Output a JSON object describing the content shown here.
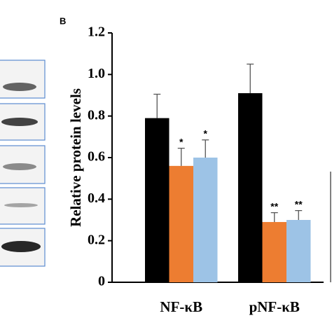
{
  "chart_data": {
    "type": "bar",
    "panel_label": "B",
    "y_label": "Relative protein levels",
    "categories": [
      "NF-κB",
      "pNF-κB"
    ],
    "series": [
      {
        "color": "#000000",
        "values": [
          0.79,
          0.91
        ],
        "errors": [
          0.115,
          0.14
        ]
      },
      {
        "color": "#ed7d31",
        "values": [
          0.56,
          0.29
        ],
        "errors": [
          0.085,
          0.045
        ],
        "labels": [
          "*",
          "**"
        ]
      },
      {
        "color": "#9dc3e6",
        "values": [
          0.6,
          0.3
        ],
        "errors": [
          0.085,
          0.045
        ],
        "labels": [
          "*",
          "**"
        ]
      }
    ],
    "ylim": [
      0,
      1.2
    ],
    "yticks": [
      {
        "value": 0,
        "label": "0"
      },
      {
        "value": 0.2,
        "label": "0.2"
      },
      {
        "value": 0.4,
        "label": "0.4"
      },
      {
        "value": 0.6,
        "label": "0.6"
      },
      {
        "value": 0.8,
        "label": "0.8"
      },
      {
        "value": 1.0,
        "label": "1.0"
      },
      {
        "value": 1.2,
        "label": "1.2"
      }
    ]
  }
}
